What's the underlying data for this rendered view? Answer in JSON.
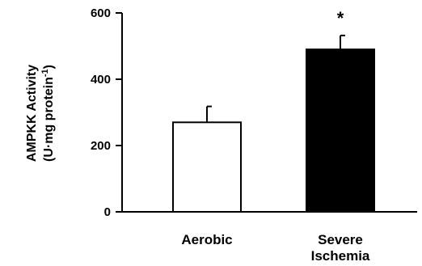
{
  "chart_data": {
    "type": "bar",
    "ylabel_line1": "AMPKK Activity",
    "ylabel_line2_main": "(U·mg protein",
    "ylabel_line2_sup": "-1",
    "ylabel_line2_end": ")",
    "ylim": [
      0,
      600
    ],
    "yticks": [
      "0",
      "200",
      "400",
      "600"
    ],
    "categories": [
      {
        "line1": "Aerobic",
        "line2": ""
      },
      {
        "line1": "Severe",
        "line2": "Ischemia"
      }
    ],
    "values": [
      270,
      490
    ],
    "errors": [
      48,
      42
    ],
    "bar_fills": [
      "#ffffff",
      "#000000"
    ],
    "annotations": [
      "",
      "*"
    ]
  }
}
